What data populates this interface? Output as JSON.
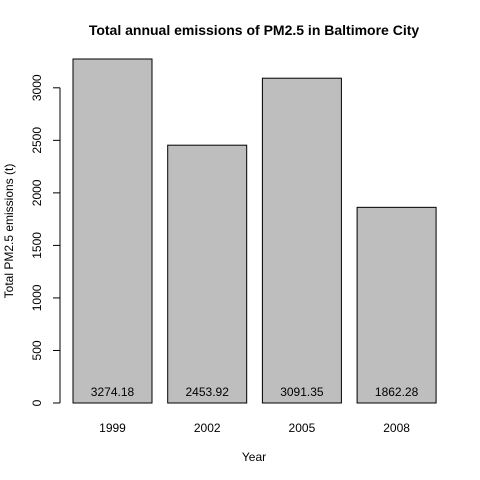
{
  "chart_data": {
    "type": "bar",
    "title": "Total annual emissions of PM2.5 in Baltimore City",
    "xlabel": "Year",
    "ylabel": "Total PM2.5 emissions (t)",
    "categories": [
      "1999",
      "2002",
      "2005",
      "2008"
    ],
    "values": [
      3274.18,
      2453.92,
      3091.35,
      1862.28
    ],
    "data_labels": [
      "3274.18",
      "2453.92",
      "3091.35",
      "1862.28"
    ],
    "yticks": [
      0,
      500,
      1000,
      1500,
      2000,
      2500,
      3000
    ],
    "ylim": [
      0,
      3274.18
    ],
    "grid": false,
    "legend": "none",
    "bar_color": "#bebebe",
    "bar_border_color": "#000000"
  }
}
